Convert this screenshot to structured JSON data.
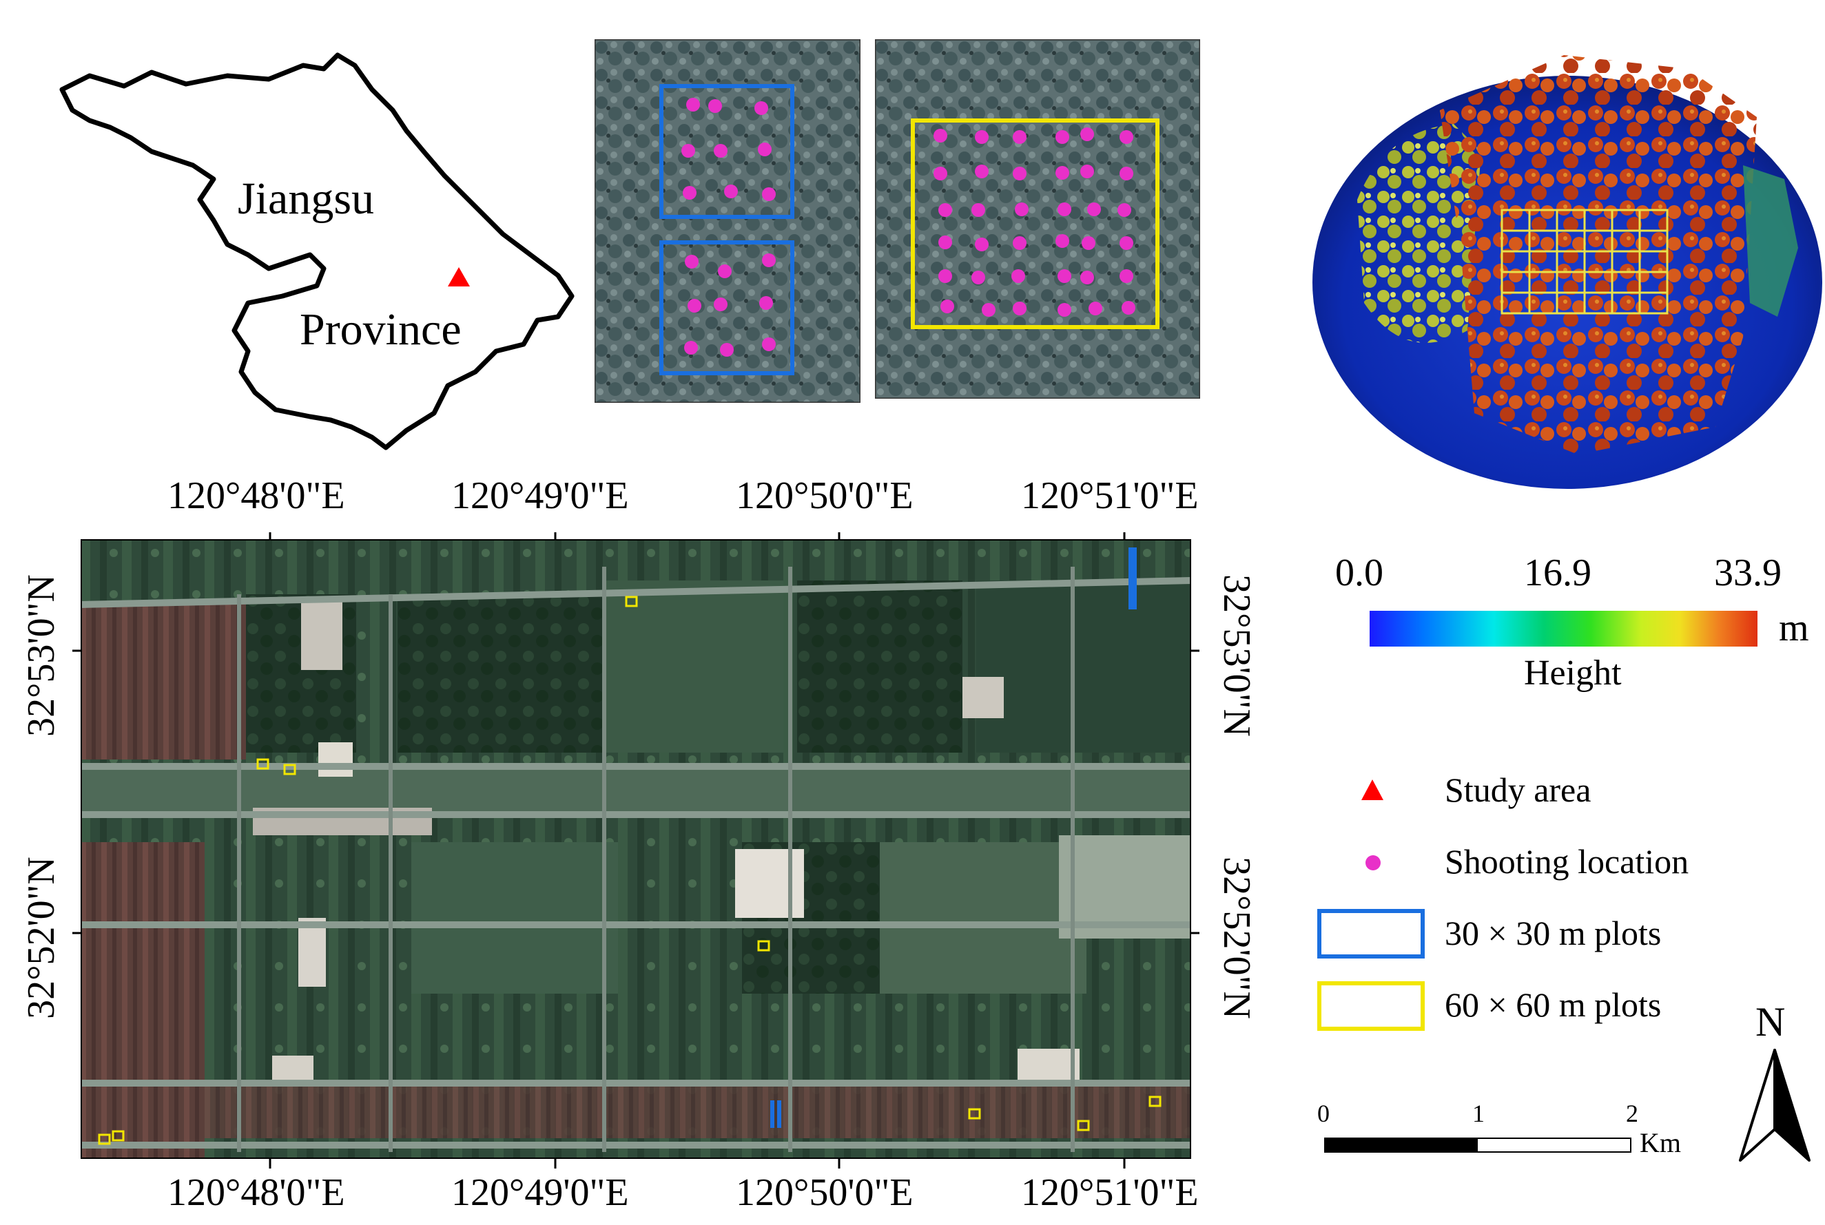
{
  "inset_map": {
    "province_name_line1": "Jiangsu",
    "province_name_line2": "Province",
    "study_area_color": "#ff0000"
  },
  "plot_panels": {
    "plot_30_color": "#1a6fe0",
    "plot_60_color": "#f2e600",
    "point_color": "#e830c8"
  },
  "colorbar": {
    "min_label": "0.0",
    "mid_label": "16.9",
    "max_label": "33.9",
    "unit": "m",
    "title": "Height"
  },
  "map_axes": {
    "top_labels": [
      "120°48'0\"E",
      "120°49'0\"E",
      "120°50'0\"E",
      "120°51'0\"E"
    ],
    "bottom_labels": [
      "120°48'0\"E",
      "120°49'0\"E",
      "120°50'0\"E",
      "120°51'0\"E"
    ],
    "left_labels": [
      "32°53'0\"N",
      "32°52'0\"N"
    ],
    "right_labels": [
      "32°53'0\"N",
      "32°52'0\"N"
    ]
  },
  "legend": {
    "study_area": "Study area",
    "shooting_location": "Shooting location",
    "plots_30": "30 × 30 m plots",
    "plots_60": "60 × 60 m plots"
  },
  "scale_bar": {
    "tick_0": "0",
    "tick_1": "1",
    "tick_2": "2",
    "unit": "Km"
  },
  "north_arrow": {
    "label": "N"
  }
}
